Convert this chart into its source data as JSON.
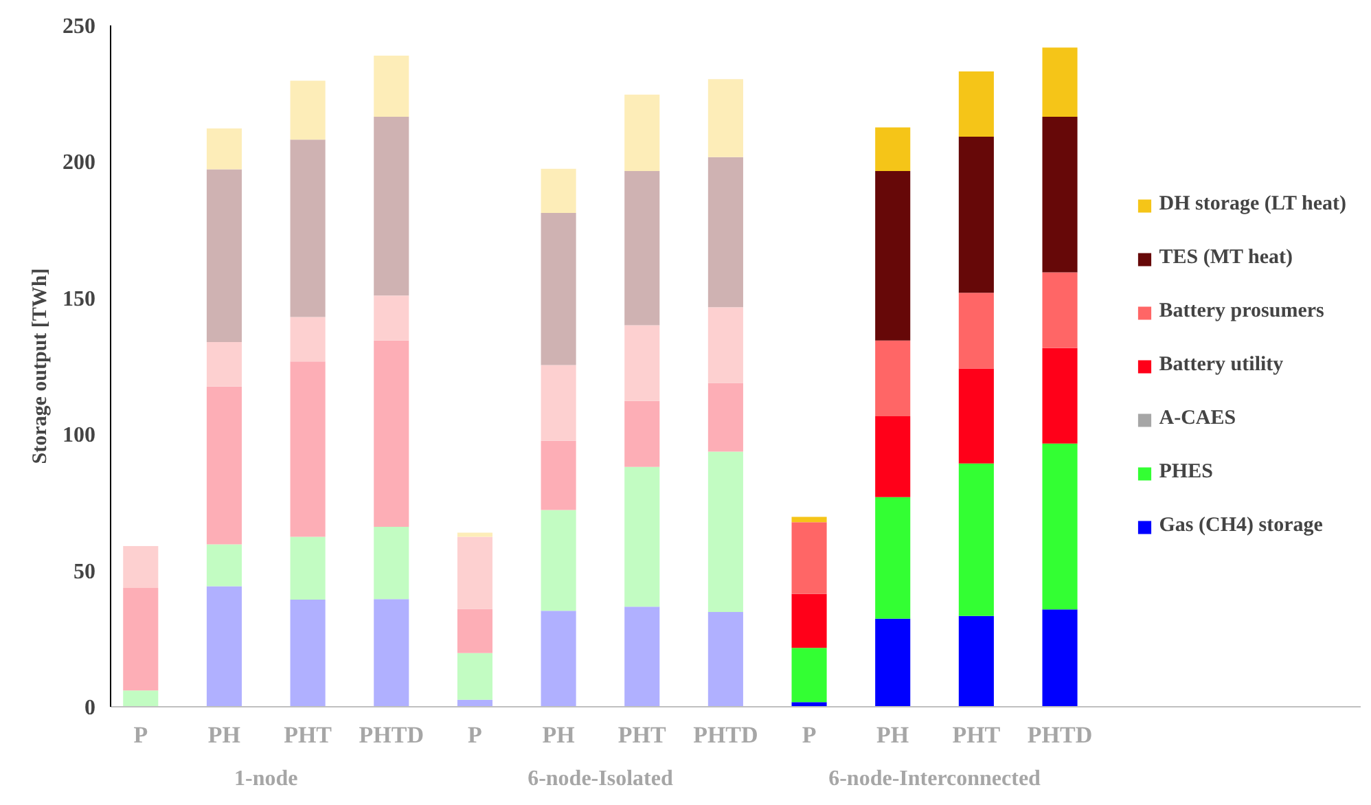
{
  "chart_data": {
    "type": "bar",
    "stacked": true,
    "ylabel": "Storage output [TWh]",
    "categories": [
      "P",
      "PH",
      "PHT",
      "PHTD",
      "P",
      "PH",
      "PHT",
      "PHTD",
      "P",
      "PH",
      "PHT",
      "PHTD"
    ],
    "ylim": [
      0,
      250
    ],
    "yticks": [
      0,
      50,
      100,
      150,
      200,
      250
    ],
    "grid": false,
    "legend": "right",
    "annotations": [
      "1-node",
      "6-node-Isolated",
      "6-node-Interconnected"
    ],
    "series": [
      {
        "name": "Gas (CH4) storage",
        "color": "#0000ff",
        "colors": [
          "#b0b0ff",
          "#b0b0ff",
          "#b0b0ff",
          "#b0b0ff",
          "#b0b0ff",
          "#b0b0ff",
          "#b0b0ff",
          "#b0b0ff",
          "#0000ff",
          "#0000ff",
          "#0000ff",
          "#0000ff"
        ],
        "values": [
          0,
          44.2,
          39.3,
          39.5,
          2.6,
          35.2,
          36.7,
          34.8,
          1.7,
          32.3,
          33.3,
          35.7
        ]
      },
      {
        "name": "PHES",
        "color": "#33ff33",
        "colors": [
          "#c2fcc2",
          "#c2fcc2",
          "#c2fcc2",
          "#c2fcc2",
          "#c2fcc2",
          "#c2fcc2",
          "#c2fcc2",
          "#c2fcc2",
          "#33ff33",
          "#33ff33",
          "#33ff33",
          "#33ff33"
        ],
        "values": [
          6.0,
          15.4,
          23.1,
          26.5,
          17.1,
          37.0,
          51.3,
          58.8,
          19.9,
          44.6,
          56.0,
          60.9
        ]
      },
      {
        "name": "A-CAES",
        "color": "#a6a6a6",
        "colors": [
          "#dcdcdc",
          "#dcdcdc",
          "#dcdcdc",
          "#dcdcdc",
          "#dcdcdc",
          "#dcdcdc",
          "#dcdcdc",
          "#dcdcdc",
          "#a6a6a6",
          "#a6a6a6",
          "#a6a6a6",
          "#a6a6a6"
        ],
        "values": [
          0,
          0,
          0,
          0,
          0,
          0,
          0,
          0,
          0,
          0,
          0,
          0
        ]
      },
      {
        "name": "Battery utility",
        "color": "#ff0019",
        "colors": [
          "#fdaeb6",
          "#fdaeb6",
          "#fdaeb6",
          "#fdaeb6",
          "#fdaeb6",
          "#fdaeb6",
          "#fdaeb6",
          "#fdaeb6",
          "#ff0019",
          "#ff0019",
          "#ff0019",
          "#ff0019"
        ],
        "values": [
          37.6,
          57.9,
          64.3,
          68.4,
          16.2,
          25.4,
          24.2,
          25.2,
          19.8,
          29.7,
          34.8,
          35.0
        ]
      },
      {
        "name": "Battery prosumers",
        "color": "#ff6666",
        "colors": [
          "#fdd0d0",
          "#fdd0d0",
          "#fdd0d0",
          "#fdd0d0",
          "#fdd0d0",
          "#fdd0d0",
          "#fdd0d0",
          "#fdd0d0",
          "#ff6666",
          "#ff6666",
          "#ff6666",
          "#ff6666"
        ],
        "values": [
          15.4,
          16.3,
          16.3,
          16.5,
          26.5,
          27.8,
          27.8,
          27.8,
          26.3,
          27.8,
          27.8,
          27.8
        ]
      },
      {
        "name": "TES (MT heat)",
        "color": "#660808",
        "colors": [
          "#cfb2b2",
          "#cfb2b2",
          "#cfb2b2",
          "#cfb2b2",
          "#cfb2b2",
          "#cfb2b2",
          "#cfb2b2",
          "#cfb2b2",
          "#660808",
          "#660808",
          "#660808",
          "#660808"
        ],
        "values": [
          0,
          63.4,
          65.1,
          65.6,
          0,
          55.8,
          56.6,
          55.1,
          0,
          62.2,
          57.3,
          57.1
        ]
      },
      {
        "name": "DH storage (LT heat)",
        "color": "#f5c518",
        "colors": [
          "#fdedb8",
          "#fdedb8",
          "#fdedb8",
          "#fdedb8",
          "#fdedb8",
          "#fdedb8",
          "#fdedb8",
          "#fdedb8",
          "#f5c518",
          "#f5c518",
          "#f5c518",
          "#f5c518"
        ],
        "values": [
          0,
          15.0,
          21.6,
          22.4,
          1.5,
          16.2,
          28.0,
          28.6,
          2.0,
          16.0,
          23.9,
          25.4
        ]
      }
    ]
  }
}
